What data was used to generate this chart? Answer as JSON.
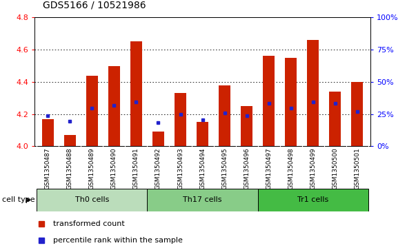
{
  "title": "GDS5166 / 10521986",
  "samples": [
    "GSM1350487",
    "GSM1350488",
    "GSM1350489",
    "GSM1350490",
    "GSM1350491",
    "GSM1350492",
    "GSM1350493",
    "GSM1350494",
    "GSM1350495",
    "GSM1350496",
    "GSM1350497",
    "GSM1350498",
    "GSM1350499",
    "GSM1350500",
    "GSM1350501"
  ],
  "bar_values": [
    4.17,
    4.07,
    4.44,
    4.5,
    4.65,
    4.09,
    4.33,
    4.15,
    4.38,
    4.25,
    4.56,
    4.55,
    4.66,
    4.34,
    4.4
  ],
  "percentile_values": [
    4.19,
    4.155,
    4.235,
    4.255,
    4.275,
    4.148,
    4.2,
    4.165,
    4.205,
    4.188,
    4.268,
    4.235,
    4.275,
    4.265,
    4.215
  ],
  "ylim": [
    4.0,
    4.8
  ],
  "yticks": [
    4.0,
    4.2,
    4.4,
    4.6,
    4.8
  ],
  "right_yticks": [
    0,
    25,
    50,
    75,
    100
  ],
  "right_ytick_labels": [
    "0%",
    "25%",
    "50%",
    "75%",
    "100%"
  ],
  "bar_color": "#cc2200",
  "percentile_color": "#2222cc",
  "groups": [
    {
      "label": "Th0 cells",
      "start": 0,
      "end": 5,
      "color": "#bbddbb"
    },
    {
      "label": "Th17 cells",
      "start": 5,
      "end": 10,
      "color": "#88cc88"
    },
    {
      "label": "Tr1 cells",
      "start": 10,
      "end": 15,
      "color": "#44bb44"
    }
  ],
  "cell_type_label": "cell type",
  "legend_bar_label": "transformed count",
  "legend_percentile_label": "percentile rank within the sample",
  "tick_bg_color": "#cccccc",
  "bar_width": 0.55,
  "title_fontsize": 10,
  "tick_fontsize": 8,
  "label_fontsize": 8,
  "sample_fontsize": 6.5
}
